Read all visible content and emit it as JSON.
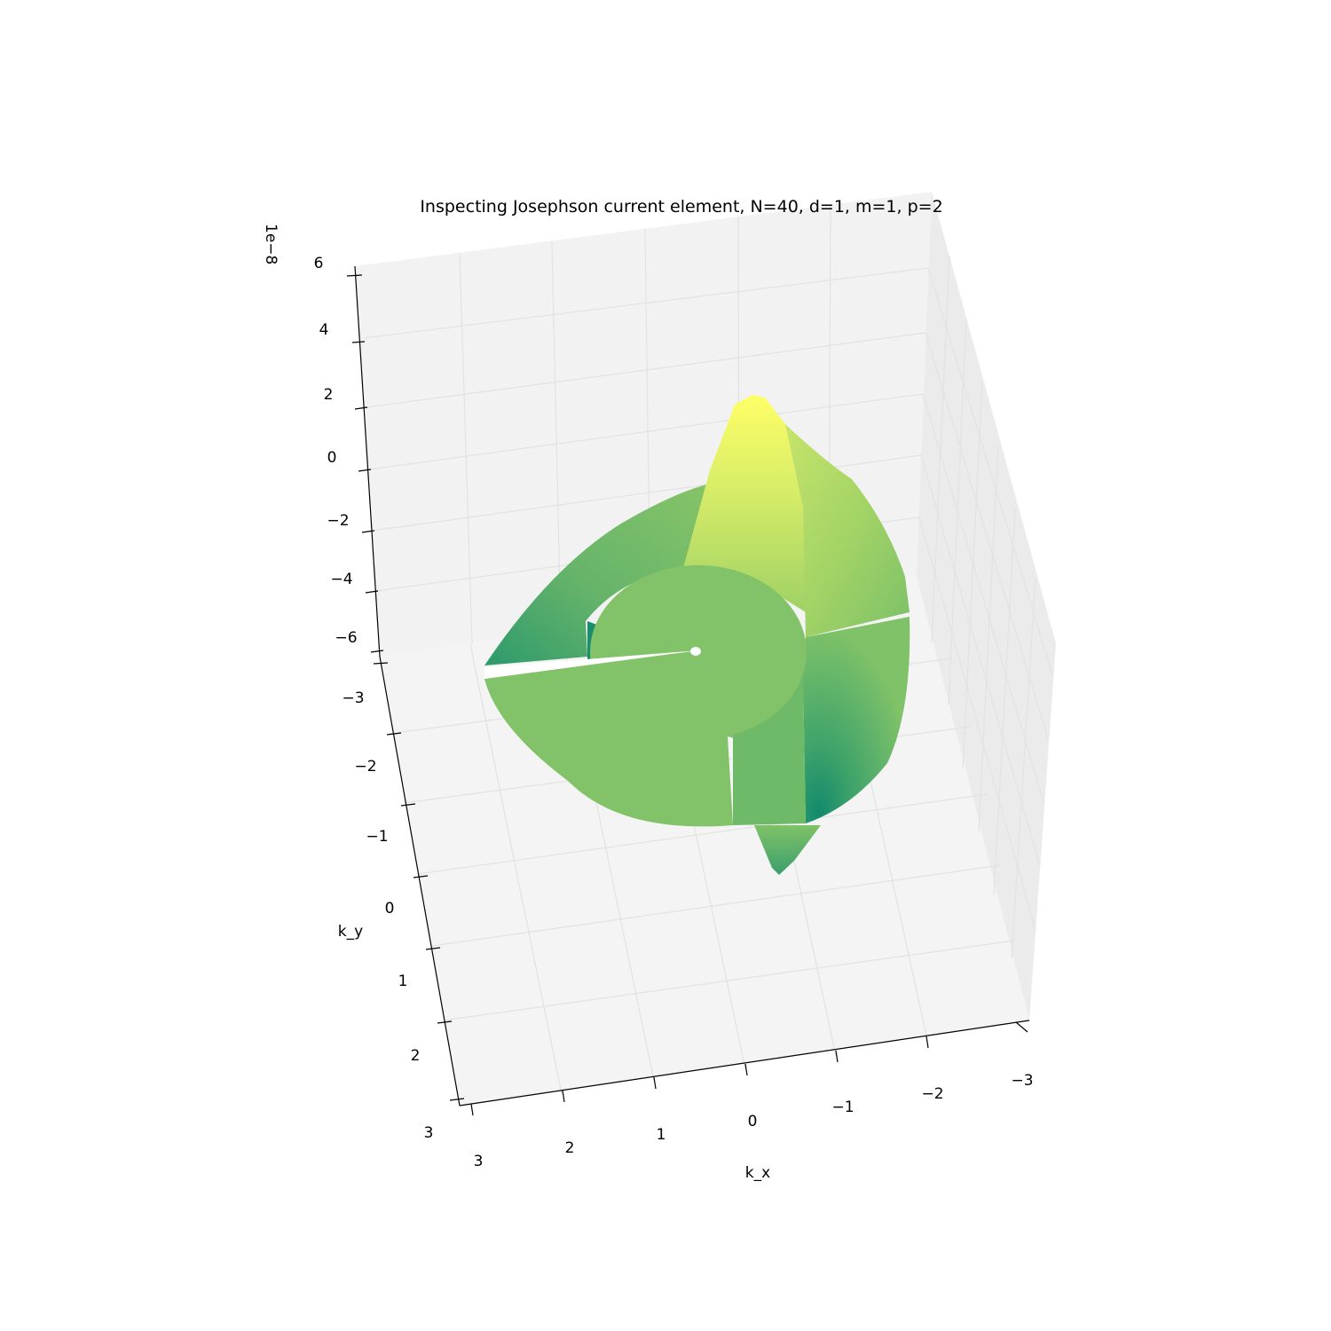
{
  "chart_data": {
    "type": "surface3d",
    "title": "Inspecting Josephson current element, N=40, d=1, m=1, p=2",
    "xlabel": "k_x",
    "ylabel": "k_y",
    "zlabel": "",
    "z_offset_label": "1e−8",
    "xlim": [
      -3,
      3
    ],
    "ylim": [
      -3,
      3
    ],
    "zlim": [
      -6,
      6
    ],
    "x_ticks": [
      "−3",
      "−2",
      "−1",
      "0",
      "1",
      "2",
      "3"
    ],
    "y_ticks": [
      "−3",
      "−2",
      "−1",
      "0",
      "1",
      "2",
      "3"
    ],
    "z_ticks": [
      "−6",
      "−4",
      "−2",
      "0",
      "2",
      "4",
      "6"
    ],
    "colormap": [
      "#1a8a6a",
      "#4aa86a",
      "#82c26a",
      "#b6dc64",
      "#ffff66"
    ],
    "grid": true
  }
}
